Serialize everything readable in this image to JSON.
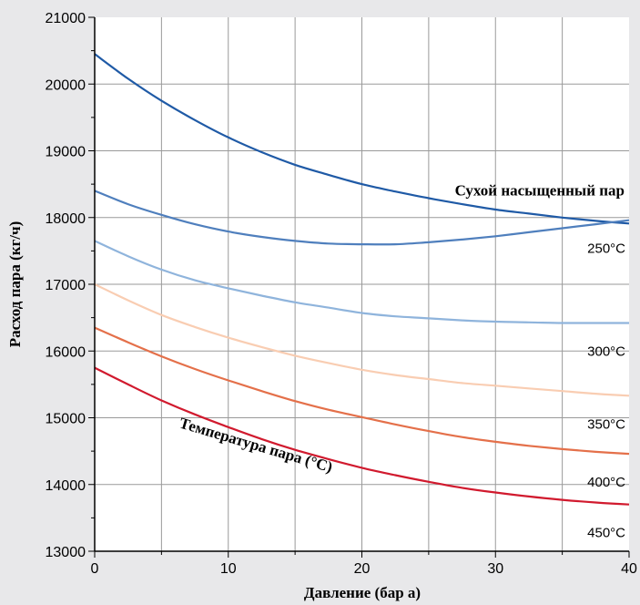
{
  "chart_data": {
    "type": "line",
    "title": "",
    "xlabel": "Давление (бар а)",
    "ylabel": "Расход пара (кг/ч)",
    "xlim": [
      0,
      40
    ],
    "ylim": [
      13000,
      21000
    ],
    "xticks": [
      "0",
      "10",
      "20",
      "30",
      "40"
    ],
    "yticks": [
      "13000",
      "14000",
      "15000",
      "16000",
      "17000",
      "18000",
      "19000",
      "20000",
      "21000"
    ],
    "grid": true,
    "annotation": "Температура пара (°C)",
    "series": [
      {
        "name": "Сухой насыщенный пар",
        "color": "#1f5aa6",
        "x": [
          0,
          2.5,
          5,
          7.5,
          10,
          12.5,
          15,
          17.5,
          20,
          22.5,
          25,
          27.5,
          30,
          32.5,
          35,
          37.5,
          40
        ],
        "y": [
          20450,
          20080,
          19750,
          19460,
          19200,
          18980,
          18790,
          18640,
          18500,
          18390,
          18290,
          18200,
          18120,
          18060,
          18000,
          17950,
          17910
        ]
      },
      {
        "name": "250°C",
        "color": "#4f7fbd",
        "x": [
          0,
          2.5,
          5,
          7.5,
          10,
          12.5,
          15,
          17.5,
          20,
          22.5,
          25,
          27.5,
          30,
          32.5,
          35,
          37.5,
          40
        ],
        "y": [
          18400,
          18200,
          18040,
          17900,
          17790,
          17710,
          17650,
          17610,
          17600,
          17600,
          17630,
          17670,
          17720,
          17780,
          17840,
          17900,
          17960
        ]
      },
      {
        "name": "300°C",
        "color": "#8fb4dc",
        "x": [
          0,
          2.5,
          5,
          7.5,
          10,
          12.5,
          15,
          17.5,
          20,
          22.5,
          25,
          27.5,
          30,
          32.5,
          35,
          37.5,
          40
        ],
        "y": [
          17650,
          17420,
          17220,
          17060,
          16940,
          16830,
          16730,
          16650,
          16570,
          16520,
          16490,
          16460,
          16440,
          16430,
          16420,
          16420,
          16420
        ]
      },
      {
        "name": "350°C",
        "color": "#f9cdb2",
        "x": [
          0,
          2.5,
          5,
          7.5,
          10,
          12.5,
          15,
          17.5,
          20,
          22.5,
          25,
          27.5,
          30,
          32.5,
          35,
          37.5,
          40
        ],
        "y": [
          17000,
          16760,
          16540,
          16360,
          16200,
          16060,
          15930,
          15820,
          15720,
          15640,
          15580,
          15520,
          15480,
          15440,
          15400,
          15360,
          15330
        ]
      },
      {
        "name": "400°C",
        "color": "#e4704a",
        "x": [
          0,
          2.5,
          5,
          7.5,
          10,
          12.5,
          15,
          17.5,
          20,
          22.5,
          25,
          27.5,
          30,
          32.5,
          35,
          37.5,
          40
        ],
        "y": [
          16350,
          16130,
          15920,
          15730,
          15560,
          15400,
          15250,
          15120,
          15010,
          14900,
          14800,
          14710,
          14640,
          14580,
          14530,
          14490,
          14460
        ]
      },
      {
        "name": "450°C",
        "color": "#d11a2e",
        "x": [
          0,
          2.5,
          5,
          7.5,
          10,
          12.5,
          15,
          17.5,
          20,
          22.5,
          25,
          27.5,
          30,
          32.5,
          35,
          37.5,
          40
        ],
        "y": [
          15750,
          15500,
          15260,
          15050,
          14860,
          14680,
          14520,
          14380,
          14250,
          14140,
          14040,
          13950,
          13880,
          13820,
          13770,
          13730,
          13700
        ]
      }
    ]
  }
}
